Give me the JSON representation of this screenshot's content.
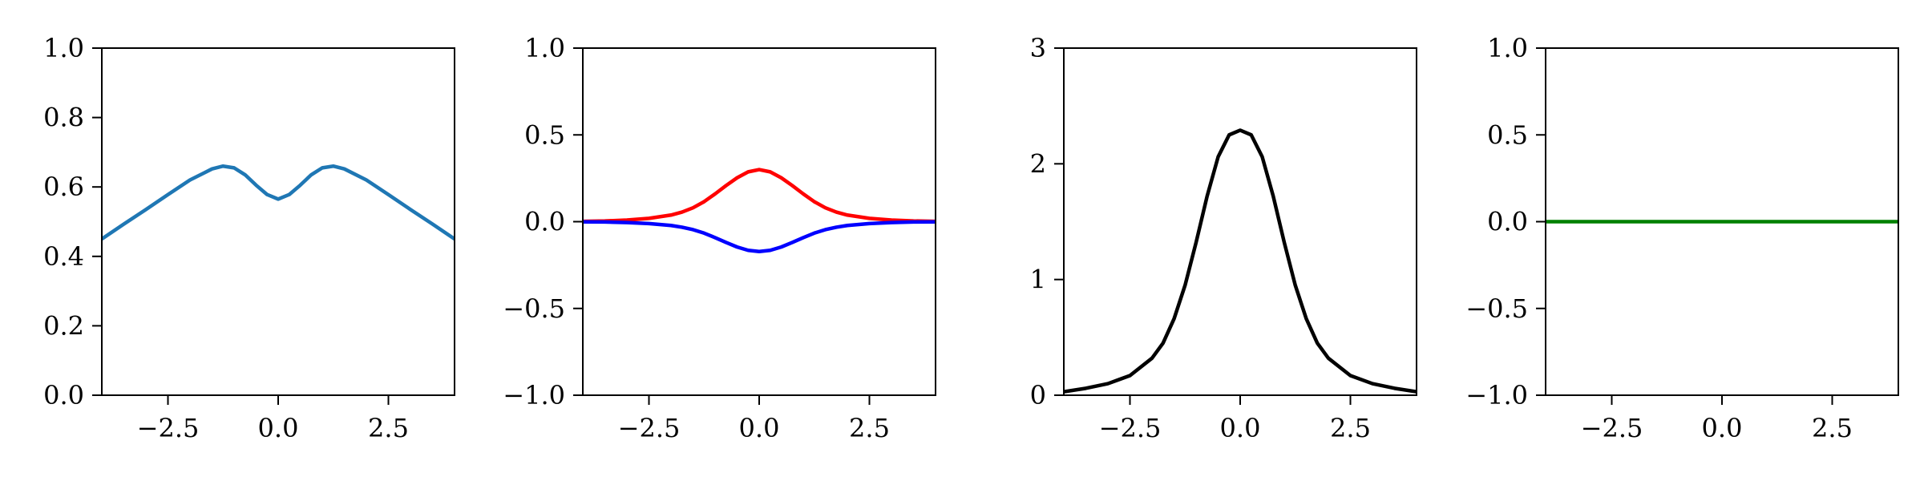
{
  "chart_data": [
    {
      "type": "line",
      "xlim": [
        -4,
        4
      ],
      "ylim": [
        0,
        1
      ],
      "xticks": [
        -2.5,
        0.0,
        2.5
      ],
      "xtick_labels": [
        "−2.5",
        "0.0",
        "2.5"
      ],
      "yticks": [
        0,
        0.2,
        0.4,
        0.6,
        0.8,
        1.0
      ],
      "ytick_labels": [
        "0.0",
        "0.2",
        "0.4",
        "0.6",
        "0.8",
        "1.0"
      ],
      "grid": false,
      "series": [
        {
          "color": "#1f77b4",
          "x": [
            -4,
            -3.5,
            -3,
            -2.5,
            -2,
            -1.5,
            -1.25,
            -1,
            -0.75,
            -0.5,
            -0.25,
            0,
            0.25,
            0.5,
            0.75,
            1,
            1.25,
            1.5,
            2,
            2.5,
            3,
            3.5,
            4
          ],
          "y": [
            0.45,
            0.493,
            0.535,
            0.578,
            0.62,
            0.652,
            0.66,
            0.655,
            0.635,
            0.605,
            0.578,
            0.565,
            0.578,
            0.605,
            0.635,
            0.655,
            0.66,
            0.652,
            0.62,
            0.578,
            0.535,
            0.493,
            0.45
          ]
        }
      ]
    },
    {
      "type": "line",
      "xlim": [
        -4,
        4
      ],
      "ylim": [
        -1,
        1
      ],
      "xticks": [
        -2.5,
        0.0,
        2.5
      ],
      "xtick_labels": [
        "−2.5",
        "0.0",
        "2.5"
      ],
      "yticks": [
        -1,
        -0.5,
        0,
        0.5,
        1
      ],
      "ytick_labels": [
        "−1.0",
        "−0.5",
        "0.0",
        "0.5",
        "1.0"
      ],
      "grid": false,
      "series": [
        {
          "color": "#ff0000",
          "x": [
            -4,
            -3.5,
            -3,
            -2.5,
            -2,
            -1.75,
            -1.5,
            -1.25,
            -1,
            -0.75,
            -0.5,
            -0.25,
            0,
            0.25,
            0.5,
            0.75,
            1,
            1.25,
            1.5,
            1.75,
            2,
            2.5,
            3,
            3.5,
            4
          ],
          "y": [
            0.002,
            0.004,
            0.009,
            0.019,
            0.038,
            0.055,
            0.08,
            0.115,
            0.16,
            0.208,
            0.253,
            0.287,
            0.3,
            0.287,
            0.253,
            0.208,
            0.16,
            0.115,
            0.08,
            0.055,
            0.038,
            0.019,
            0.009,
            0.004,
            0.002
          ]
        },
        {
          "color": "#0000ff",
          "x": [
            -4,
            -3.5,
            -3,
            -2.5,
            -2,
            -1.75,
            -1.5,
            -1.25,
            -1,
            -0.75,
            -0.5,
            -0.25,
            0,
            0.25,
            0.5,
            0.75,
            1,
            1.25,
            1.5,
            1.75,
            2,
            2.5,
            3,
            3.5,
            4
          ],
          "y": [
            -0.001,
            -0.002,
            -0.005,
            -0.011,
            -0.022,
            -0.032,
            -0.046,
            -0.066,
            -0.092,
            -0.12,
            -0.146,
            -0.165,
            -0.172,
            -0.165,
            -0.146,
            -0.12,
            -0.092,
            -0.066,
            -0.046,
            -0.032,
            -0.022,
            -0.011,
            -0.005,
            -0.002,
            -0.001
          ]
        }
      ]
    },
    {
      "type": "line",
      "xlim": [
        -4,
        4
      ],
      "ylim": [
        0,
        3
      ],
      "xticks": [
        -2.5,
        0.0,
        2.5
      ],
      "xtick_labels": [
        "−2.5",
        "0.0",
        "2.5"
      ],
      "yticks": [
        0,
        1,
        2,
        3
      ],
      "ytick_labels": [
        "0",
        "1",
        "2",
        "3"
      ],
      "grid": false,
      "series": [
        {
          "color": "#000000",
          "x": [
            -4,
            -3.5,
            -3,
            -2.5,
            -2,
            -1.75,
            -1.5,
            -1.25,
            -1,
            -0.75,
            -0.5,
            -0.25,
            0,
            0.25,
            0.5,
            0.75,
            1,
            1.25,
            1.5,
            1.75,
            2,
            2.5,
            3,
            3.5,
            4
          ],
          "y": [
            0.03,
            0.06,
            0.1,
            0.17,
            0.32,
            0.45,
            0.66,
            0.95,
            1.32,
            1.72,
            2.06,
            2.25,
            2.29,
            2.25,
            2.06,
            1.72,
            1.32,
            0.95,
            0.66,
            0.45,
            0.32,
            0.17,
            0.1,
            0.06,
            0.03
          ]
        }
      ]
    },
    {
      "type": "line",
      "xlim": [
        -4,
        4
      ],
      "ylim": [
        -1,
        1
      ],
      "xticks": [
        -2.5,
        0.0,
        2.5
      ],
      "xtick_labels": [
        "−2.5",
        "0.0",
        "2.5"
      ],
      "yticks": [
        -1,
        -0.5,
        0,
        0.5,
        1
      ],
      "ytick_labels": [
        "−1.0",
        "−0.5",
        "0.0",
        "0.5",
        "1.0"
      ],
      "grid": false,
      "series": [
        {
          "color": "#008000",
          "x": [
            -4,
            4
          ],
          "y": [
            0,
            0
          ]
        }
      ]
    }
  ]
}
